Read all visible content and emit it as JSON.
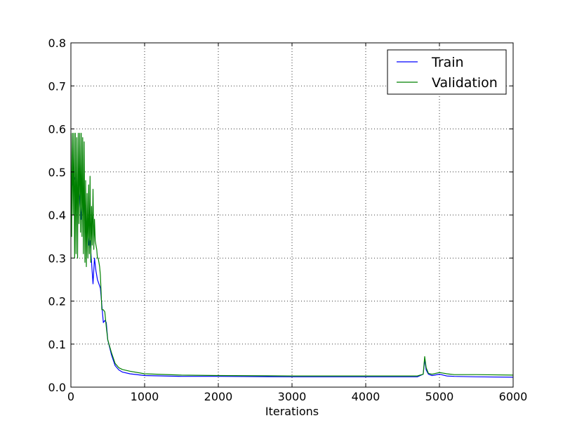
{
  "chart_data": {
    "type": "line",
    "title": "",
    "xlabel": "Iterations",
    "ylabel": "",
    "xlim": [
      0,
      6000
    ],
    "ylim": [
      0.0,
      0.8
    ],
    "x_ticks": [
      "0",
      "1000",
      "2000",
      "3000",
      "4000",
      "5000",
      "6000"
    ],
    "y_ticks": [
      "0.0",
      "0.1",
      "0.2",
      "0.3",
      "0.4",
      "0.5",
      "0.6",
      "0.7",
      "0.8"
    ],
    "grid": true,
    "legend_position": "top-right",
    "series": [
      {
        "name": "Train",
        "color": "#0000ff",
        "x": [
          0,
          20,
          40,
          60,
          80,
          100,
          120,
          140,
          160,
          180,
          200,
          220,
          240,
          260,
          280,
          300,
          320,
          340,
          360,
          380,
          400,
          420,
          440,
          460,
          480,
          500,
          550,
          600,
          650,
          700,
          800,
          1000,
          1500,
          2000,
          3000,
          4000,
          4500,
          4700,
          4780,
          4800,
          4820,
          4850,
          4900,
          5000,
          5100,
          5200,
          5500,
          6000
        ],
        "y": [
          0.49,
          0.47,
          0.49,
          0.48,
          0.43,
          0.47,
          0.44,
          0.39,
          0.46,
          0.42,
          0.36,
          0.38,
          0.33,
          0.34,
          0.29,
          0.24,
          0.3,
          0.27,
          0.25,
          0.24,
          0.23,
          0.19,
          0.15,
          0.155,
          0.15,
          0.11,
          0.075,
          0.05,
          0.04,
          0.035,
          0.031,
          0.027,
          0.025,
          0.025,
          0.024,
          0.024,
          0.024,
          0.024,
          0.03,
          0.065,
          0.04,
          0.03,
          0.027,
          0.03,
          0.026,
          0.025,
          0.024,
          0.023
        ]
      },
      {
        "name": "Validation",
        "color": "#008000",
        "x": [
          0,
          10,
          20,
          30,
          40,
          50,
          60,
          70,
          80,
          90,
          100,
          110,
          120,
          130,
          140,
          150,
          160,
          170,
          180,
          190,
          200,
          210,
          220,
          230,
          240,
          250,
          260,
          270,
          280,
          290,
          300,
          310,
          320,
          330,
          340,
          350,
          360,
          370,
          380,
          390,
          400,
          420,
          440,
          460,
          480,
          500,
          550,
          600,
          650,
          700,
          800,
          1000,
          1500,
          2000,
          3000,
          4000,
          4500,
          4700,
          4780,
          4800,
          4820,
          4850,
          4900,
          5000,
          5100,
          5200,
          5500,
          6000
        ],
        "y": [
          0.59,
          0.35,
          0.59,
          0.4,
          0.59,
          0.3,
          0.59,
          0.31,
          0.58,
          0.3,
          0.59,
          0.38,
          0.59,
          0.36,
          0.59,
          0.35,
          0.58,
          0.31,
          0.57,
          0.29,
          0.48,
          0.28,
          0.45,
          0.3,
          0.47,
          0.31,
          0.49,
          0.29,
          0.42,
          0.33,
          0.46,
          0.32,
          0.39,
          0.34,
          0.33,
          0.32,
          0.3,
          0.3,
          0.29,
          0.28,
          0.26,
          0.18,
          0.18,
          0.175,
          0.14,
          0.11,
          0.08,
          0.055,
          0.045,
          0.041,
          0.037,
          0.031,
          0.028,
          0.027,
          0.026,
          0.026,
          0.026,
          0.026,
          0.03,
          0.071,
          0.045,
          0.032,
          0.03,
          0.034,
          0.031,
          0.029,
          0.029,
          0.028
        ]
      }
    ]
  }
}
